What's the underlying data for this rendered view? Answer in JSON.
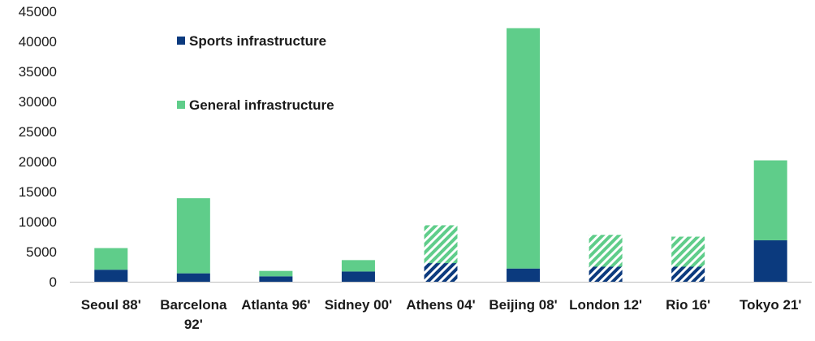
{
  "chart_data": {
    "type": "bar",
    "stacked": true,
    "categories": [
      "Seoul 88'",
      "Barcelona 92'",
      "Atlanta 96'",
      "Sidney 00'",
      "Athens 04'",
      "Beijing 08'",
      "London 12'",
      "Rio 16'",
      "Tokyo 21'"
    ],
    "category_lines": [
      [
        "Seoul 88'"
      ],
      [
        "Barcelona",
        "92'"
      ],
      [
        "Atlanta 96'"
      ],
      [
        "Sidney 00'"
      ],
      [
        "Athens 04'"
      ],
      [
        "Beijing 08'"
      ],
      [
        "London 12'"
      ],
      [
        "Rio 16'"
      ],
      [
        "Tokyo 21'"
      ]
    ],
    "series": [
      {
        "name": "Sports infrastructure",
        "color": "#0b3a7e",
        "values": [
          2000,
          1400,
          900,
          1700,
          3100,
          2200,
          2500,
          2500,
          6900
        ]
      },
      {
        "name": "General infrastructure",
        "color": "#5fcd8a",
        "values": [
          3600,
          12500,
          900,
          1900,
          6300,
          40000,
          5300,
          5000,
          13300
        ]
      }
    ],
    "hatched_categories": [
      "Athens 04'",
      "London 12'",
      "Rio 16'"
    ],
    "ylim": [
      0,
      45000
    ],
    "yticks": [
      0,
      5000,
      10000,
      15000,
      20000,
      25000,
      30000,
      35000,
      40000,
      45000
    ],
    "xlabel": "",
    "ylabel": "",
    "title": "",
    "grid": false,
    "legend_position": "top-left-inside"
  }
}
